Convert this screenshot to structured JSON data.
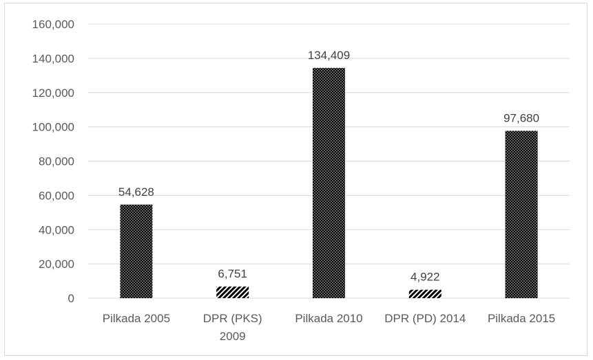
{
  "chart_data": {
    "type": "bar",
    "categories": [
      [
        "Pilkada 2005"
      ],
      [
        "DPR (PKS)",
        "2009"
      ],
      [
        "Pilkada 2010"
      ],
      [
        "DPR (PD) 2014"
      ],
      [
        "Pilkada 2015"
      ]
    ],
    "values": [
      54628,
      6751,
      134409,
      4922,
      97680
    ],
    "data_labels": [
      "54,628",
      "6,751",
      "134,409",
      "4,922",
      "97,680"
    ],
    "patterns": [
      "dots",
      "diagonal",
      "dots",
      "diagonal",
      "dots"
    ],
    "ylim": [
      0,
      160000
    ],
    "yticks": [
      "0",
      "20,000",
      "40,000",
      "60,000",
      "80,000",
      "100,000",
      "120,000",
      "140,000",
      "160,000"
    ],
    "title": "",
    "xlabel": "",
    "ylabel": "",
    "grid": true,
    "legend": "none",
    "colors": {
      "bar": "#000000",
      "grid": "#d9d9d9",
      "text": "#595959"
    }
  }
}
